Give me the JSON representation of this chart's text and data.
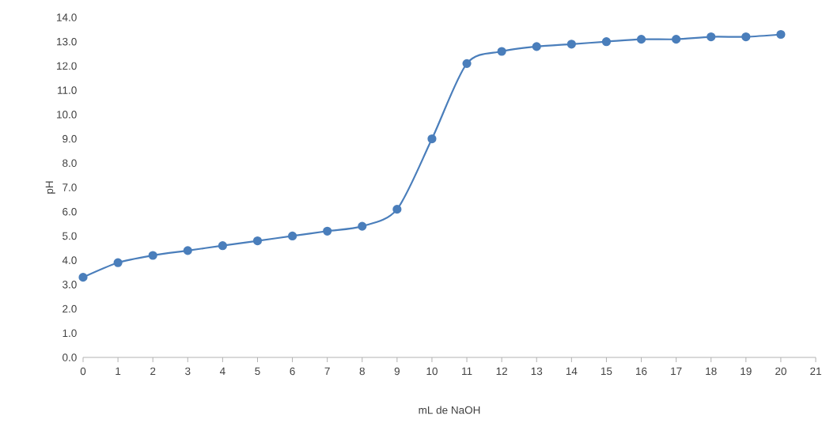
{
  "chart_data": {
    "type": "line",
    "xlabel": "mL de NaOH",
    "ylabel": "pH",
    "x": [
      0,
      1,
      2,
      3,
      4,
      5,
      6,
      7,
      8,
      9,
      10,
      11,
      12,
      13,
      14,
      15,
      16,
      17,
      18,
      19,
      20
    ],
    "series": [
      {
        "color": "#4a7ebb",
        "values": [
          3.3,
          3.9,
          4.2,
          4.4,
          4.6,
          4.8,
          5.0,
          5.2,
          5.4,
          6.1,
          9.0,
          12.1,
          12.6,
          12.8,
          12.9,
          13.0,
          13.1,
          13.1,
          13.2,
          13.2,
          13.3
        ]
      }
    ],
    "xlim": [
      0,
      21
    ],
    "ylim": [
      0,
      14
    ],
    "xticks": [
      0,
      1,
      2,
      3,
      4,
      5,
      6,
      7,
      8,
      9,
      10,
      11,
      12,
      13,
      14,
      15,
      16,
      17,
      18,
      19,
      20,
      21
    ],
    "yticks": [
      {
        "value": 0,
        "label": "0.0"
      },
      {
        "value": 1,
        "label": "1.0"
      },
      {
        "value": 2,
        "label": "2.0"
      },
      {
        "value": 3,
        "label": "3.0"
      },
      {
        "value": 4,
        "label": "4.0"
      },
      {
        "value": 5,
        "label": "5.0"
      },
      {
        "value": 6,
        "label": "6.0"
      },
      {
        "value": 7,
        "label": "7.0"
      },
      {
        "value": 8,
        "label": "8.0"
      },
      {
        "value": 9,
        "label": "9.0"
      },
      {
        "value": 10,
        "label": "10.0"
      },
      {
        "value": 11,
        "label": "11.0"
      },
      {
        "value": 12,
        "label": "12.0"
      },
      {
        "value": 13,
        "label": "13.0"
      },
      {
        "value": 14,
        "label": "14.0"
      }
    ],
    "marker": "circle",
    "line_style": "solid"
  }
}
